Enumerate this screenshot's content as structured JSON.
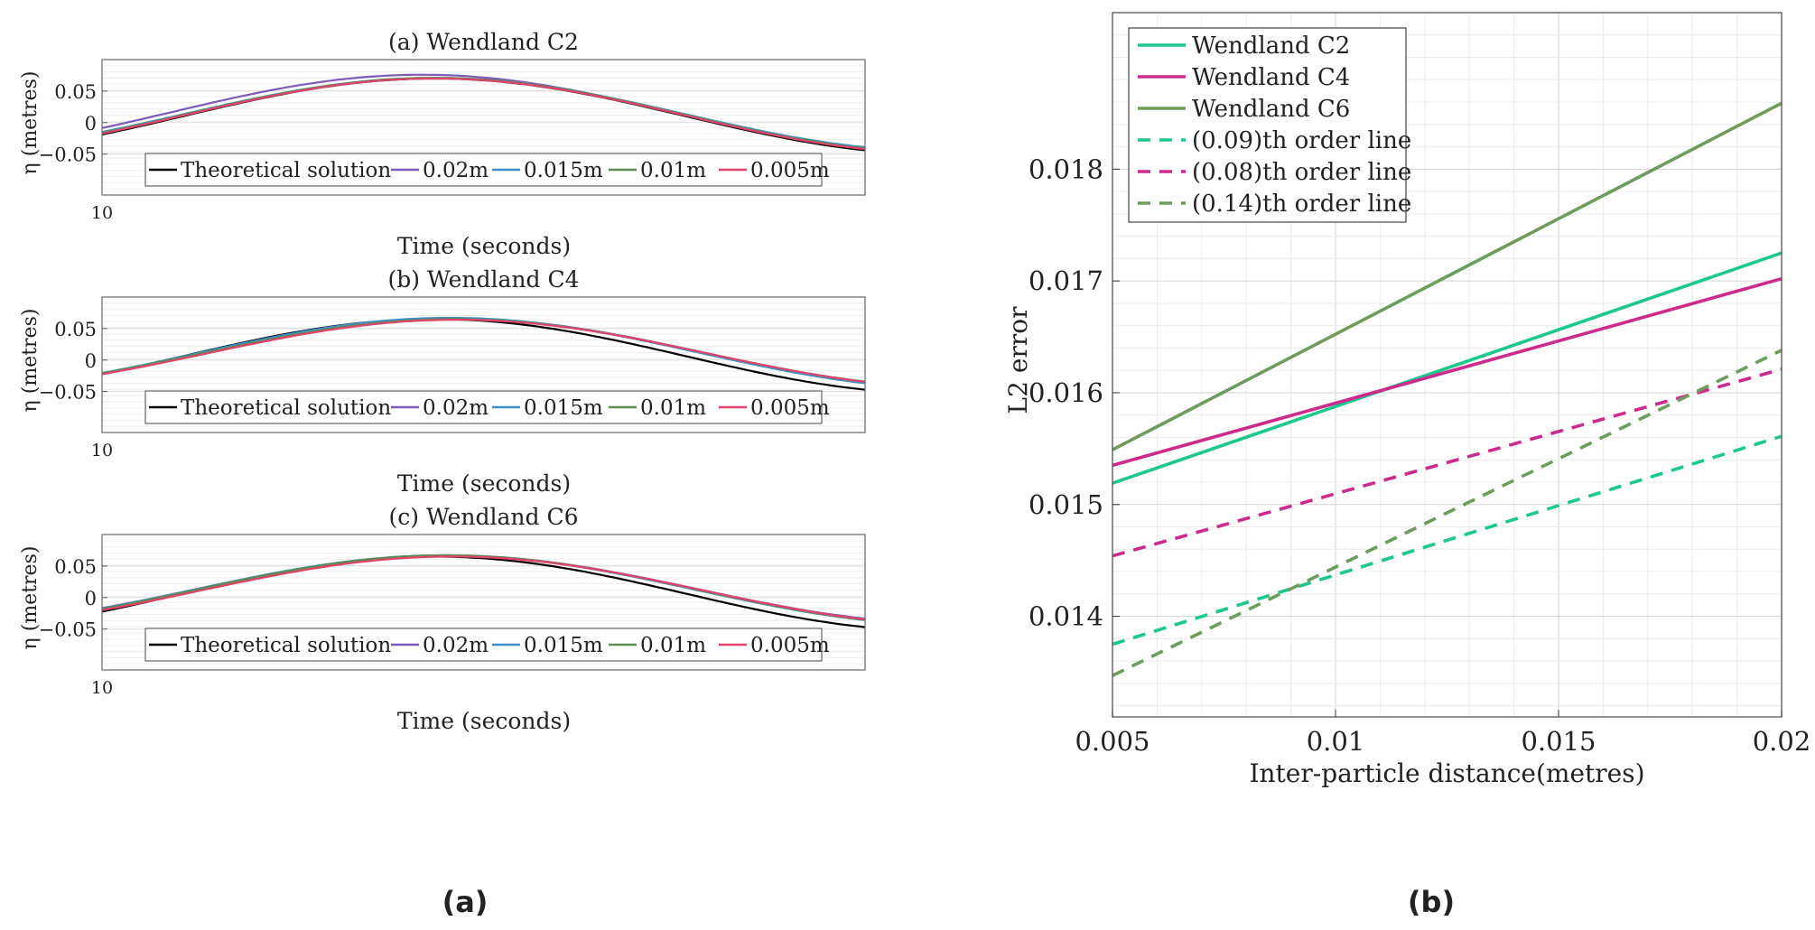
{
  "colors": {
    "theory": "#000000",
    "s020": "#7E5BB8",
    "s015": "#3D8FC6",
    "s010": "#5E8C50",
    "s005": "#E0436B",
    "c2": "#1DC88C",
    "c4": "#CC2B8C",
    "c6": "#6E9C5E"
  },
  "panel_labels": {
    "a": "(a)",
    "b": "(b)"
  },
  "chart_data": [
    {
      "type": "line",
      "title": "(a) Wendland C2",
      "xlabel": "Time (seconds)",
      "ylabel": "η (metres)",
      "x_tick": "10",
      "yticks": [
        "0.05",
        "0",
        "−0.05"
      ],
      "ylim": [
        -0.115,
        0.1
      ],
      "legend": [
        "Theoretical solution",
        "0.02m",
        "0.015m",
        "0.01m",
        "0.005m"
      ],
      "series": [
        {
          "name": "Theoretical solution",
          "color_key": "theory",
          "amp": 0.06,
          "offset": 0.01,
          "phase": 0.0
        },
        {
          "name": "0.02m",
          "color_key": "s020",
          "amp": 0.06,
          "offset": 0.016,
          "phase": 0.05
        },
        {
          "name": "0.015m",
          "color_key": "s015",
          "amp": 0.058,
          "offset": 0.013,
          "phase": 0.0
        },
        {
          "name": "0.01m",
          "color_key": "s010",
          "amp": 0.059,
          "offset": 0.012,
          "phase": 0.0
        },
        {
          "name": "0.005m",
          "color_key": "s005",
          "amp": 0.059,
          "offset": 0.011,
          "phase": 0.0
        }
      ]
    },
    {
      "type": "line",
      "title": "(b) Wendland C4",
      "xlabel": "Time (seconds)",
      "ylabel": "η (metres)",
      "x_tick": "10",
      "yticks": [
        "0.05",
        "0",
        "−0.05"
      ],
      "ylim": [
        -0.115,
        0.1
      ],
      "legend": [
        "Theoretical solution",
        "0.02m",
        "0.015m",
        "0.01m",
        "0.005m"
      ],
      "series": [
        {
          "name": "Theoretical solution",
          "color_key": "theory",
          "amp": 0.059,
          "offset": 0.006,
          "phase": 0.0
        },
        {
          "name": "0.02m",
          "color_key": "s020",
          "amp": 0.055,
          "offset": 0.011,
          "phase": -0.08
        },
        {
          "name": "0.015m",
          "color_key": "s015",
          "amp": 0.056,
          "offset": 0.011,
          "phase": -0.06
        },
        {
          "name": "0.01m",
          "color_key": "s010",
          "amp": 0.054,
          "offset": 0.011,
          "phase": -0.08
        },
        {
          "name": "0.005m",
          "color_key": "s005",
          "amp": 0.054,
          "offset": 0.01,
          "phase": -0.09
        }
      ]
    },
    {
      "type": "line",
      "title": "(c) Wendland C6",
      "xlabel": "Time (seconds)",
      "ylabel": "η (metres)",
      "x_tick": "10",
      "yticks": [
        "0.05",
        "0",
        "−0.05"
      ],
      "ylim": [
        -0.115,
        0.1
      ],
      "legend": [
        "Theoretical solution",
        "0.02m",
        "0.015m",
        "0.01m",
        "0.005m"
      ],
      "series": [
        {
          "name": "Theoretical solution",
          "color_key": "theory",
          "amp": 0.059,
          "offset": 0.006,
          "phase": 0.0
        },
        {
          "name": "0.02m",
          "color_key": "s020",
          "amp": 0.054,
          "offset": 0.013,
          "phase": -0.05
        },
        {
          "name": "0.015m",
          "color_key": "s015",
          "amp": 0.055,
          "offset": 0.012,
          "phase": -0.04
        },
        {
          "name": "0.01m",
          "color_key": "s010",
          "amp": 0.055,
          "offset": 0.012,
          "phase": -0.05
        },
        {
          "name": "0.005m",
          "color_key": "s005",
          "amp": 0.054,
          "offset": 0.011,
          "phase": -0.07
        }
      ]
    },
    {
      "type": "line",
      "title": "",
      "xlabel": "Inter-particle distance(metres)",
      "ylabel": "L2 error",
      "xlim": [
        0.005,
        0.02
      ],
      "ylim": [
        0.0131,
        0.0194
      ],
      "xticks": [
        0.005,
        0.01,
        0.015,
        0.02
      ],
      "xtick_labels": [
        "0.005",
        "0.01",
        "0.015",
        "0.02"
      ],
      "yticks": [
        0.014,
        0.015,
        0.016,
        0.017,
        0.018
      ],
      "ytick_labels": [
        "0.014",
        "0.015",
        "0.016",
        "0.017",
        "0.018"
      ],
      "legend_position": "top-left",
      "series": [
        {
          "name": "Wendland C2",
          "color_key": "c2",
          "dashed": false,
          "x": [
            0.005,
            0.02
          ],
          "y": [
            0.01519,
            0.01725
          ]
        },
        {
          "name": "Wendland C4",
          "color_key": "c4",
          "dashed": false,
          "x": [
            0.005,
            0.02
          ],
          "y": [
            0.01535,
            0.01702
          ]
        },
        {
          "name": "Wendland C6",
          "color_key": "c6",
          "dashed": false,
          "x": [
            0.005,
            0.02
          ],
          "y": [
            0.01549,
            0.01859
          ]
        },
        {
          "name": "(0.09)th order line",
          "color_key": "c2",
          "dashed": true,
          "x": [
            0.005,
            0.02
          ],
          "y": [
            0.01375,
            0.01561
          ]
        },
        {
          "name": "(0.08)th order line",
          "color_key": "c4",
          "dashed": true,
          "x": [
            0.005,
            0.02
          ],
          "y": [
            0.01454,
            0.01621
          ]
        },
        {
          "name": "(0.14)th order line",
          "color_key": "c6",
          "dashed": true,
          "x": [
            0.005,
            0.02
          ],
          "y": [
            0.01347,
            0.01638
          ]
        }
      ]
    }
  ]
}
